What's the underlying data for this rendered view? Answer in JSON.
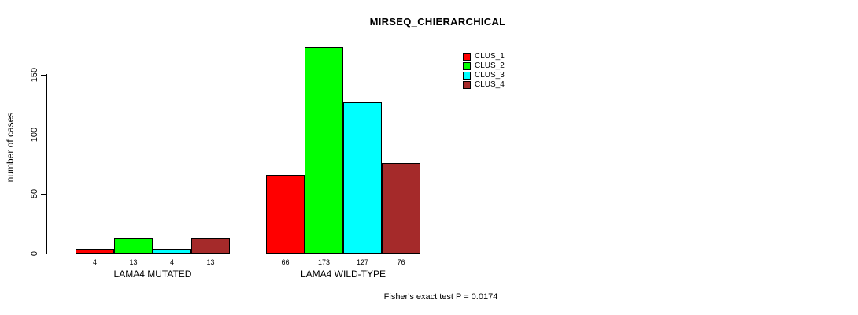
{
  "title": "MIRSEQ_CHIERARCHICAL",
  "ylabel": "number of cases",
  "footer": "Fisher's exact test P = 0.0174",
  "chart_data": {
    "type": "bar",
    "title": "MIRSEQ_CHIERARCHICAL",
    "xlabel": "",
    "ylabel": "number of cases",
    "categories": [
      "LAMA4 MUTATED",
      "LAMA4 WILD-TYPE"
    ],
    "series": [
      {
        "name": "CLUS_1",
        "color": "#ff0000",
        "values": [
          4,
          66
        ]
      },
      {
        "name": "CLUS_2",
        "color": "#00ff00",
        "values": [
          13,
          173
        ]
      },
      {
        "name": "CLUS_3",
        "color": "#00ffff",
        "values": [
          4,
          127
        ]
      },
      {
        "name": "CLUS_4",
        "color": "#a52a2a",
        "values": [
          13,
          76
        ]
      }
    ],
    "yticks": [
      0,
      50,
      100,
      150
    ],
    "ylim": [
      0,
      173
    ],
    "bar_value_labels": true,
    "legend_position": "top-right",
    "grid": false,
    "annotation": "Fisher's exact test P = 0.0174"
  }
}
